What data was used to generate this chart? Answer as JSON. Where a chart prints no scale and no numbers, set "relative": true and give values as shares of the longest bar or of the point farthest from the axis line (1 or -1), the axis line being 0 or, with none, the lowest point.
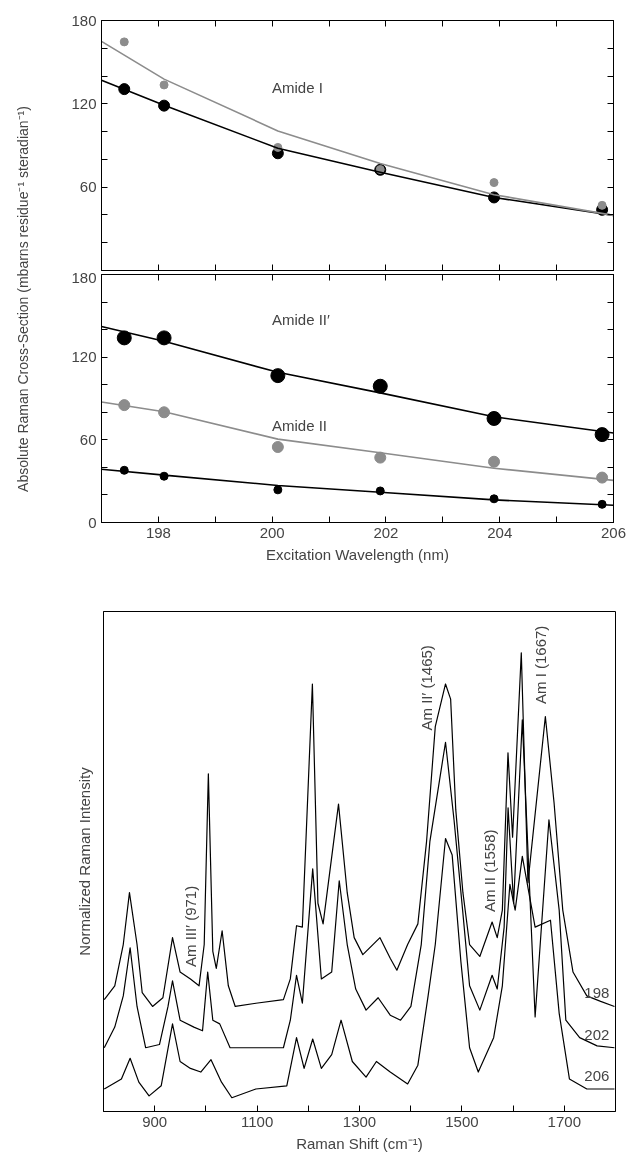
{
  "chart_data": [
    {
      "type": "scatter",
      "ylabel": "Absolute Raman Cross-Section (mbarns residue⁻¹ steradian⁻¹)",
      "xlim": [
        197,
        206
      ],
      "ylim": [
        0,
        180
      ],
      "xticks": [
        {
          "value": 198,
          "label": null
        },
        {
          "value": 199,
          "label": null
        },
        {
          "value": 200,
          "label": null
        },
        {
          "value": 201,
          "label": null
        },
        {
          "value": 202,
          "label": null
        },
        {
          "value": 203,
          "label": null
        },
        {
          "value": 204,
          "label": null
        },
        {
          "value": 205,
          "label": null
        }
      ],
      "yticks": [
        {
          "value": 0,
          "label": null
        },
        {
          "value": 20,
          "label": null
        },
        {
          "value": 40,
          "label": null
        },
        60,
        {
          "value": 80,
          "label": null
        },
        {
          "value": 100,
          "label": null
        },
        120,
        {
          "value": 140,
          "label": null
        },
        {
          "value": 160,
          "label": null
        },
        180
      ],
      "tick_labels": "y",
      "x": [
        197.4,
        198.1,
        200.1,
        201.9,
        203.9,
        205.8
      ],
      "annotations": [
        "Amide I"
      ],
      "series": [
        {
          "type": "scatter",
          "color": "#000000",
          "values": [
            130.6,
            118.7,
            84.4,
            72.5,
            52.6,
            43.7
          ]
        },
        {
          "type": "scatter",
          "color": "#8c8c8c",
          "values": [
            164.6,
            133.6,
            88.6,
            72.7,
            63.3,
            46.9
          ]
        },
        {
          "type": "line",
          "color": "#000000",
          "x": [
            197,
            198.1,
            200.1,
            201.9,
            203.9,
            206
          ],
          "values": [
            137,
            119,
            88,
            70.8,
            52.6,
            39.7
          ]
        },
        {
          "type": "line",
          "color": "#8c8c8c",
          "x": [
            197,
            198.1,
            200.1,
            201.9,
            203.9,
            206
          ],
          "values": [
            165,
            137.8,
            100.5,
            77,
            54.6,
            39.7
          ]
        }
      ]
    },
    {
      "type": "scatter",
      "xlabel": "Excitation Wavelength (nm)",
      "xlim": [
        197,
        206
      ],
      "ylim": [
        0,
        180
      ],
      "xticks": [
        198,
        {
          "value": 199,
          "label": null
        },
        200,
        {
          "value": 201,
          "label": null
        },
        202,
        {
          "value": 203,
          "label": null
        },
        204,
        {
          "value": 205,
          "label": null
        },
        206
      ],
      "yticks": [
        0,
        {
          "value": 20,
          "label": null
        },
        {
          "value": 40,
          "label": null
        },
        60,
        {
          "value": 80,
          "label": null
        },
        {
          "value": 100,
          "label": null
        },
        120,
        {
          "value": 140,
          "label": null
        },
        {
          "value": 160,
          "label": null
        },
        180
      ],
      "x": [
        197.4,
        198.1,
        200.1,
        201.9,
        203.9,
        205.8
      ],
      "annotations": [
        "Amide II′",
        "Amide II"
      ],
      "series": [
        {
          "type": "scatter",
          "color": "#000000",
          "values": [
            134,
            134,
            106.6,
            98.9,
            75.5,
            63.8
          ]
        },
        {
          "type": "scatter",
          "color": "#8c8c8c",
          "values": [
            85.2,
            80,
            54.8,
            47.1,
            44.1,
            32.6
          ]
        },
        {
          "type": "scatter",
          "color": "#000000",
          "values": [
            37.9,
            33.6,
            23.7,
            22.9,
            17.2,
            13.2
          ]
        },
        {
          "type": "line",
          "color": "#000000",
          "x": [
            197,
            198.1,
            200.1,
            201.9,
            203.9,
            206
          ],
          "values": [
            142.2,
            131.5,
            109,
            94.1,
            76.7,
            65
          ]
        },
        {
          "type": "line",
          "color": "#8c8c8c",
          "x": [
            197,
            198.1,
            200.1,
            201.9,
            203.9,
            206
          ],
          "values": [
            87.4,
            80.4,
            60.5,
            50.6,
            39.4,
            30.6
          ]
        },
        {
          "type": "line",
          "color": "#000000",
          "x": [
            197,
            198.1,
            200.1,
            201.9,
            203.9,
            206
          ],
          "values": [
            38.6,
            34.4,
            26.9,
            21.9,
            16.4,
            12.5
          ]
        }
      ]
    },
    {
      "type": "line",
      "relative": true,
      "xlabel": "Raman Shift (cm⁻¹)",
      "ylabel": "Normalized Raman Intensity",
      "xlim": [
        800,
        1800
      ],
      "xticks": [
        900,
        {
          "value": 1000,
          "label": null
        },
        1100,
        {
          "value": 1200,
          "label": null
        },
        1300,
        {
          "value": 1400,
          "label": null
        },
        1500,
        {
          "value": 1600,
          "label": null
        },
        1700
      ],
      "tick_labels": "x",
      "annotations": [
        "Am III′ (971)",
        "Am II′ (1465)",
        "Am II (1558)",
        "Am I (1667)"
      ],
      "series": [
        {
          "name": "198",
          "color": "#000000",
          "x": [
            801.5,
            822,
            838.6,
            850.7,
            865.5,
            875.6,
            895.8,
            916,
            934.8,
            949.6,
            969.8,
            986.6,
            996.7,
            1004.8,
            1013.5,
            1020.3,
            1031.7,
            1043.8,
            1057.3,
            1097.6,
            1151.4,
            1164.9,
            1177,
            1188.4,
            1208,
            1218.8,
            1228.9,
            1259,
            1276,
            1289.6,
            1306.5,
            1340,
            1360,
            1373,
            1394,
            1414,
            1431,
            1448,
            1468,
            1478,
            1488,
            1502,
            1515,
            1535,
            1559,
            1569,
            1579,
            1590,
            1599,
            1616,
            1629,
            1663,
            1680,
            1697,
            1717,
            1744,
            1771,
            1798
          ],
          "values": [
            0.244,
            0.274,
            0.364,
            0.477,
            0.364,
            0.259,
            0.229,
            0.248,
            0.379,
            0.304,
            0.289,
            0.274,
            0.364,
            0.736,
            0.349,
            0.312,
            0.394,
            0.274,
            0.229,
            0.236,
            0.244,
            0.289,
            0.405,
            0.402,
            0.932,
            0.454,
            0.409,
            0.67,
            0.477,
            0.379,
            0.342,
            0.379,
            0.334,
            0.308,
            0.364,
            0.409,
            0.589,
            0.839,
            0.932,
            0.899,
            0.658,
            0.477,
            0.364,
            0.338,
            0.413,
            0.379,
            0.439,
            0.782,
            0.598,
            1.0,
            0.499,
            0.861,
            0.673,
            0.439,
            0.304,
            0.252,
            0.24,
            0.229
          ]
        },
        {
          "name": "202",
          "color": "#000000",
          "x": [
            801.5,
            822,
            838.6,
            852,
            865.5,
            882.3,
            909.3,
            926,
            934.8,
            949.6,
            976.5,
            993.4,
            1003.5,
            1013.5,
            1027,
            1047.2,
            1097.6,
            1151.4,
            1164.9,
            1177,
            1188.4,
            1208.6,
            1225.5,
            1245.7,
            1260.4,
            1276,
            1292.6,
            1312.8,
            1336.4,
            1360,
            1380.2,
            1400.4,
            1420.6,
            1437.5,
            1468,
            1484.6,
            1501.4,
            1515,
            1535,
            1559,
            1569,
            1582.5,
            1590.2,
            1601,
            1618,
            1643,
            1670,
            1690,
            1703,
            1730,
            1764,
            1798
          ],
          "values": [
            0.139,
            0.184,
            0.252,
            0.357,
            0.229,
            0.139,
            0.146,
            0.229,
            0.285,
            0.199,
            0.184,
            0.176,
            0.304,
            0.199,
            0.191,
            0.139,
            0.139,
            0.139,
            0.199,
            0.297,
            0.236,
            0.529,
            0.289,
            0.304,
            0.503,
            0.364,
            0.267,
            0.221,
            0.248,
            0.21,
            0.199,
            0.229,
            0.364,
            0.589,
            0.805,
            0.636,
            0.439,
            0.274,
            0.221,
            0.297,
            0.267,
            0.402,
            0.662,
            0.454,
            0.854,
            0.206,
            0.636,
            0.439,
            0.199,
            0.161,
            0.143,
            0.139
          ]
        },
        {
          "name": "206",
          "color": "#000000",
          "x": [
            801.5,
            835,
            852,
            869,
            889,
            912.7,
            934.8,
            949.6,
            969.8,
            990,
            1010,
            1030.5,
            1050.7,
            1097.6,
            1158,
            1177,
            1191.8,
            1208.6,
            1225.5,
            1245.7,
            1264,
            1286,
            1312.8,
            1333,
            1360,
            1394,
            1414,
            1434,
            1448,
            1468,
            1481,
            1498,
            1515,
            1532,
            1562,
            1579,
            1593.7,
            1604,
            1618,
            1643,
            1673,
            1690,
            1710,
            1744,
            1798
          ],
          "values": [
            0.049,
            0.071,
            0.116,
            0.064,
            0.034,
            0.056,
            0.191,
            0.109,
            0.094,
            0.086,
            0.113,
            0.064,
            0.03,
            0.049,
            0.056,
            0.161,
            0.094,
            0.158,
            0.094,
            0.124,
            0.199,
            0.109,
            0.075,
            0.109,
            0.086,
            0.06,
            0.101,
            0.252,
            0.364,
            0.595,
            0.559,
            0.327,
            0.139,
            0.086,
            0.161,
            0.274,
            0.495,
            0.439,
            0.556,
            0.402,
            0.417,
            0.214,
            0.071,
            0.049,
            0.049
          ]
        }
      ]
    }
  ]
}
